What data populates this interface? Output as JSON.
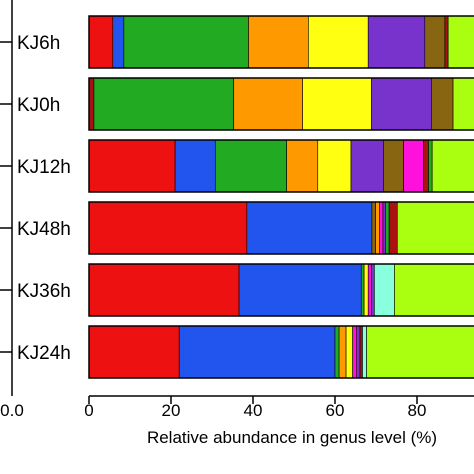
{
  "chart_data": {
    "type": "bar",
    "orientation": "horizontal",
    "stacked": true,
    "xlabel": "Relative abundance in genus level (%)",
    "xlim": [
      0,
      100
    ],
    "xticks": [
      "0",
      "20",
      "40",
      "60",
      "80"
    ],
    "left_axis_partial_tick": "0.0",
    "categories": [
      "KJ6h",
      "KJ0h",
      "KJ12h",
      "KJ48h",
      "KJ36h",
      "KJ24h"
    ],
    "segment_colors": [
      "#ee1111",
      "#2255ee",
      "#22aa22",
      "#ff9900",
      "#ffff11",
      "#7733cc",
      "#886611",
      "#ff11dd",
      "#88ffdd",
      "#aaff11",
      "#aa1111"
    ],
    "series": [
      {
        "label": "KJ6h",
        "segments": [
          {
            "color": "#ee1111",
            "value": 5.8
          },
          {
            "color": "#2255ee",
            "value": 2.7
          },
          {
            "color": "#22aa22",
            "value": 30.4
          },
          {
            "color": "#ff9900",
            "value": 14.6
          },
          {
            "color": "#ffff11",
            "value": 14.6
          },
          {
            "color": "#7733cc",
            "value": 13.8
          },
          {
            "color": "#886611",
            "value": 4.9
          },
          {
            "color": "#aa1111",
            "value": 0.8
          },
          {
            "color": "#aaff11",
            "value": 12.4
          }
        ]
      },
      {
        "label": "KJ0h",
        "segments": [
          {
            "color": "#aa1111",
            "value": 1.2
          },
          {
            "color": "#22aa22",
            "value": 34.1
          },
          {
            "color": "#ff9900",
            "value": 16.8
          },
          {
            "color": "#ffff11",
            "value": 16.8
          },
          {
            "color": "#7733cc",
            "value": 14.6
          },
          {
            "color": "#886611",
            "value": 5.3
          },
          {
            "color": "#aaff11",
            "value": 11.2
          }
        ]
      },
      {
        "label": "KJ12h",
        "segments": [
          {
            "color": "#ee1111",
            "value": 21.0
          },
          {
            "color": "#2255ee",
            "value": 9.8
          },
          {
            "color": "#22aa22",
            "value": 17.4
          },
          {
            "color": "#ff9900",
            "value": 7.6
          },
          {
            "color": "#ffff11",
            "value": 8.1
          },
          {
            "color": "#7733cc",
            "value": 7.9
          },
          {
            "color": "#886611",
            "value": 4.9
          },
          {
            "color": "#ff11dd",
            "value": 4.9
          },
          {
            "color": "#aa1111",
            "value": 1.2
          },
          {
            "color": "#22aa22",
            "value": 0.9
          },
          {
            "color": "#aaff11",
            "value": 16.3
          }
        ]
      },
      {
        "label": "KJ48h",
        "segments": [
          {
            "color": "#ee1111",
            "value": 38.5
          },
          {
            "color": "#2255ee",
            "value": 30.5
          },
          {
            "color": "#886611",
            "value": 0.9
          },
          {
            "color": "#ff9900",
            "value": 1.0
          },
          {
            "color": "#ff11dd",
            "value": 0.8
          },
          {
            "color": "#7733cc",
            "value": 0.6
          },
          {
            "color": "#22aa22",
            "value": 0.9
          },
          {
            "color": "#aa1111",
            "value": 2.0
          },
          {
            "color": "#aaff11",
            "value": 24.8
          }
        ]
      },
      {
        "label": "KJ36h",
        "segments": [
          {
            "color": "#ee1111",
            "value": 36.6
          },
          {
            "color": "#2255ee",
            "value": 29.8
          },
          {
            "color": "#22aa22",
            "value": 0.7
          },
          {
            "color": "#ffff11",
            "value": 1.0
          },
          {
            "color": "#ff11dd",
            "value": 0.8
          },
          {
            "color": "#7733cc",
            "value": 0.7
          },
          {
            "color": "#88ffdd",
            "value": 4.9
          },
          {
            "color": "#aaff11",
            "value": 25.5
          }
        ]
      },
      {
        "label": "KJ24h",
        "segments": [
          {
            "color": "#ee1111",
            "value": 22.0
          },
          {
            "color": "#2255ee",
            "value": 38.0
          },
          {
            "color": "#22aa22",
            "value": 1.0
          },
          {
            "color": "#ff9900",
            "value": 1.7
          },
          {
            "color": "#ffff11",
            "value": 1.6
          },
          {
            "color": "#ff11dd",
            "value": 1.0
          },
          {
            "color": "#7733cc",
            "value": 0.8
          },
          {
            "color": "#aa1111",
            "value": 0.6
          },
          {
            "color": "#88ffdd",
            "value": 1.0
          },
          {
            "color": "#aaff11",
            "value": 32.3
          }
        ]
      }
    ]
  }
}
